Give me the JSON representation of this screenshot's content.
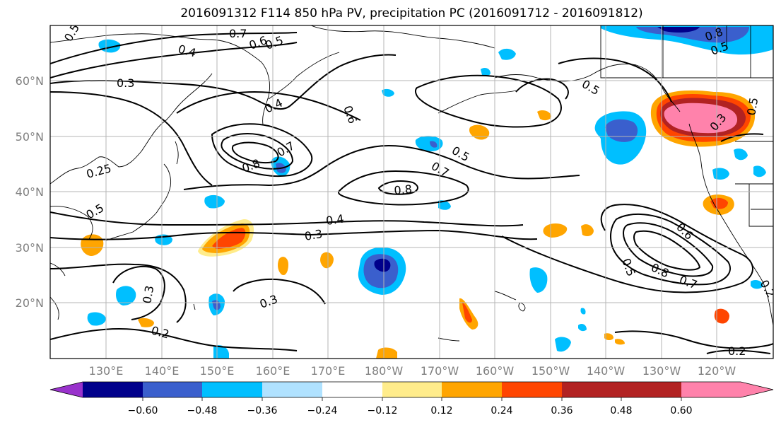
{
  "title": "2016091312 F114 850 hPa PV, precipitation PC (2016091712 - 2016091812)",
  "lat_ticks": [
    "60°N",
    "50°N",
    "40°N",
    "30°N",
    "20°N"
  ],
  "lon_ticks": [
    "130°E",
    "140°E",
    "150°E",
    "160°E",
    "170°E",
    "180°W",
    "170°W",
    "160°W",
    "150°W",
    "140°W",
    "130°W",
    "120°W"
  ],
  "colorbar": {
    "labels": [
      "−0.60",
      "−0.48",
      "−0.36",
      "−0.24",
      "−0.12",
      "0.12",
      "0.24",
      "0.36",
      "0.48",
      "0.60"
    ],
    "colors": [
      "#9932CC",
      "#00008B",
      "#3A5FCD",
      "#00BFFF",
      "#B0E2FF",
      "#FFFFFF",
      "#FFEC8B",
      "#FFA500",
      "#FF4500",
      "#B22222",
      "#FF82AB"
    ]
  },
  "contour_labels": [
    "0.5",
    "0.7",
    "0.6",
    "0.5",
    "0.4",
    "0.3",
    "0.4",
    "0.8",
    "0.7",
    "0.6",
    "0.5",
    "0.7",
    "0.8",
    "0.25",
    "0.5",
    "0.4",
    "0.3",
    "0.3",
    "0.3",
    "0.2",
    "0.5",
    "0.5",
    "0.3",
    "0.6",
    "0.5",
    "0.8",
    "0.7",
    "0.2",
    "0.2",
    "0.8",
    "0.5"
  ]
}
